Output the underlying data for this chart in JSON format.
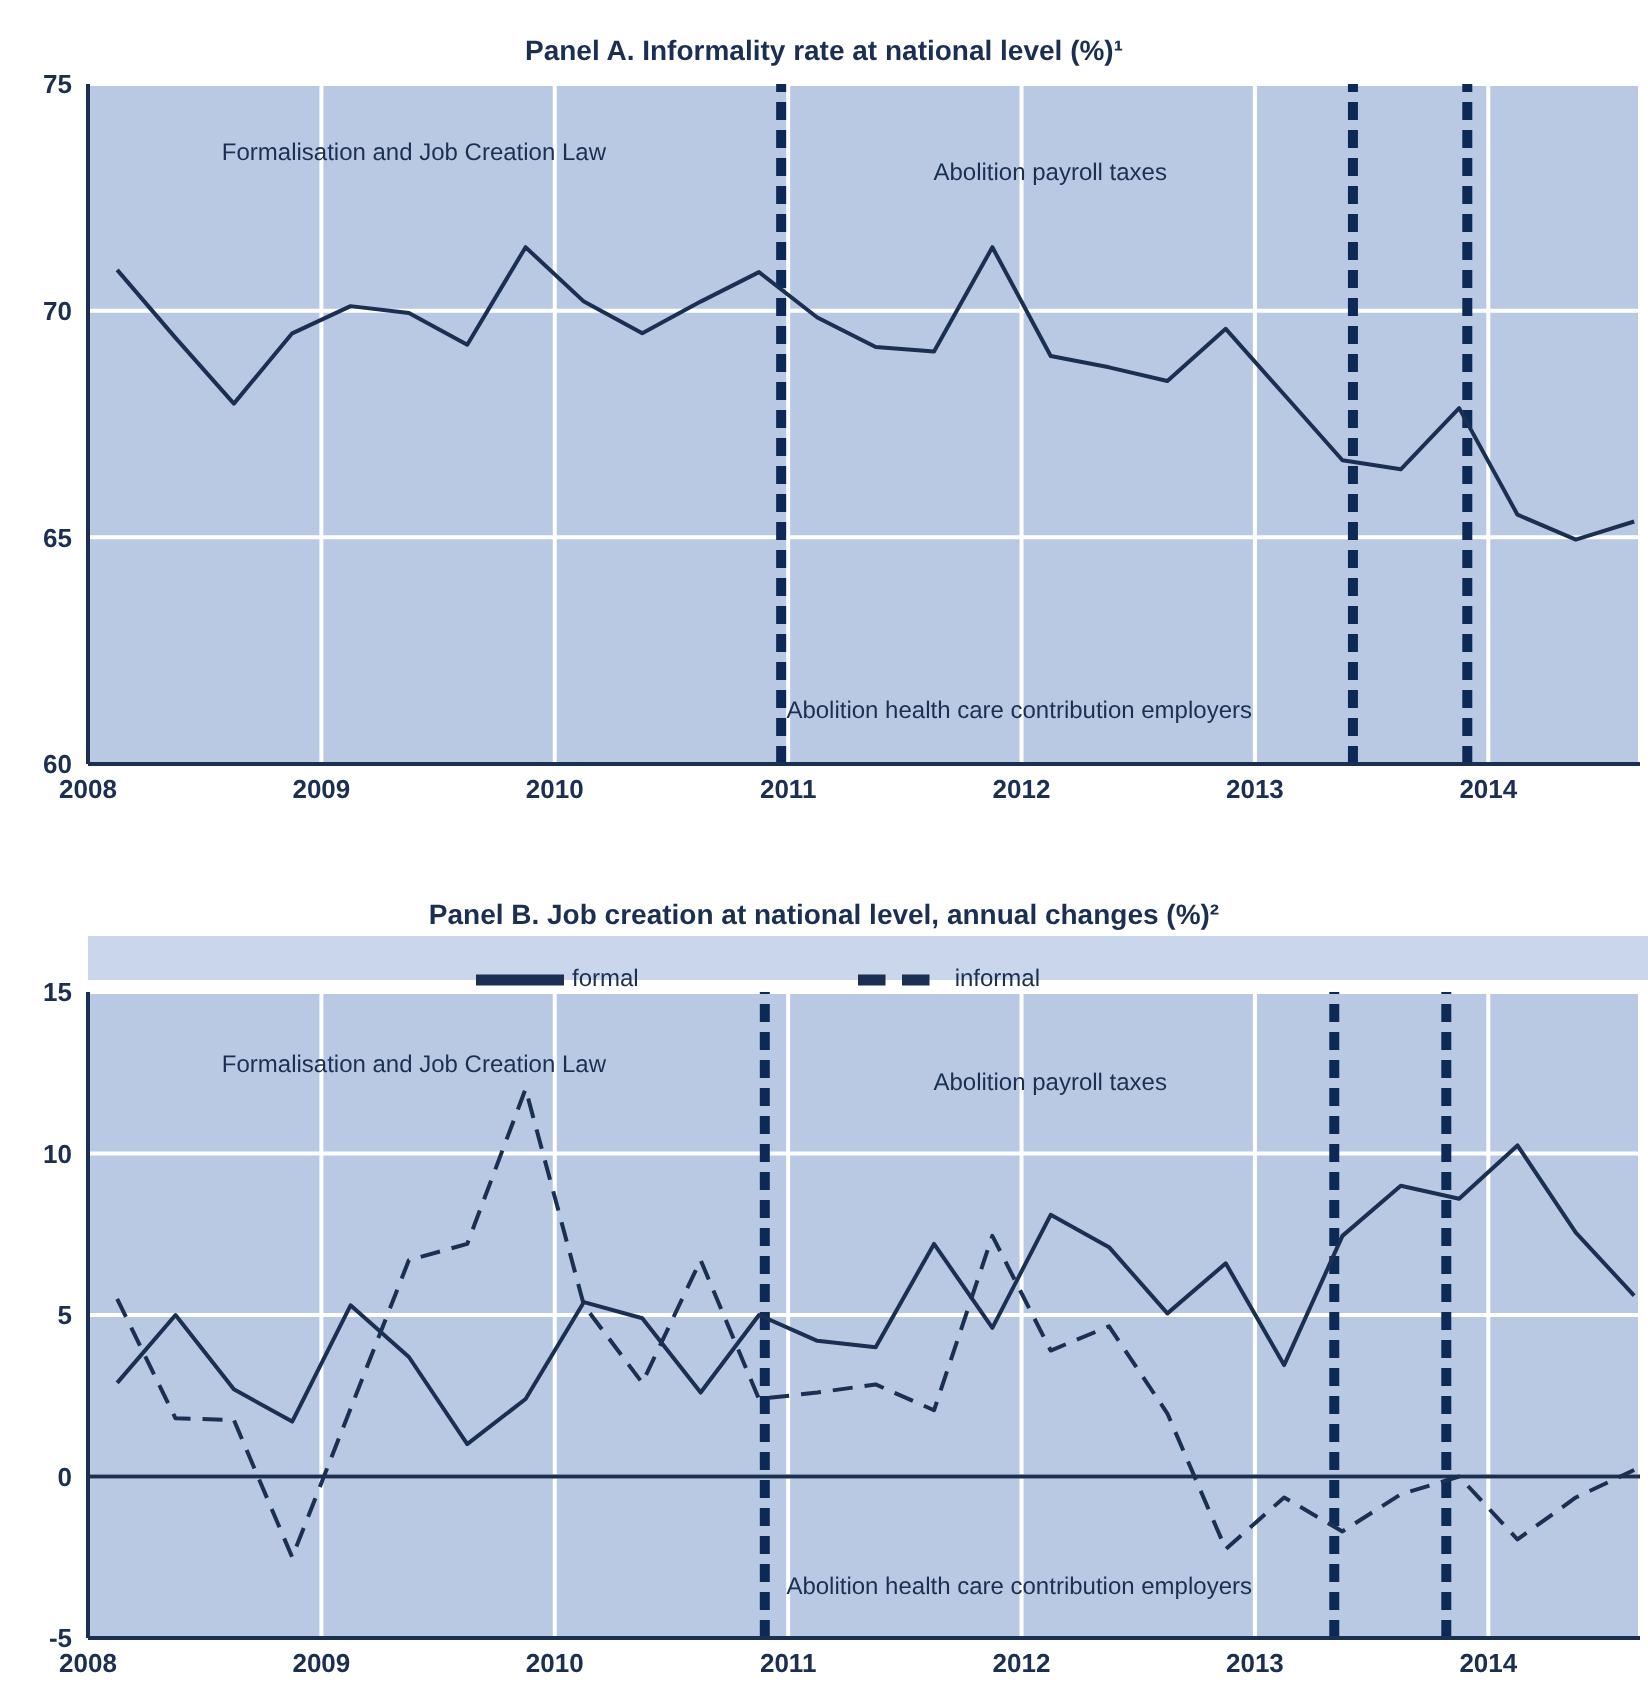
{
  "chart_data": [
    {
      "type": "line",
      "title": "Panel A. Informality rate at national level (%)¹",
      "x": [
        2008.125,
        2008.375,
        2008.625,
        2008.875,
        2009.125,
        2009.375,
        2009.625,
        2009.875,
        2010.125,
        2010.375,
        2010.625,
        2010.875,
        2011.125,
        2011.375,
        2011.625,
        2011.875,
        2012.125,
        2012.375,
        2012.625,
        2012.875,
        2013.125,
        2013.375,
        2013.625,
        2013.875,
        2014.125,
        2014.375,
        2014.625
      ],
      "series": [
        {
          "color": "#1b2f52",
          "line_style": "solid",
          "values": [
            70.9,
            69.4,
            67.95,
            69.5,
            70.1,
            69.95,
            69.25,
            71.4,
            70.2,
            69.5,
            70.2,
            70.85,
            69.85,
            69.2,
            69.1,
            71.4,
            69.0,
            68.75,
            68.45,
            69.6,
            68.15,
            66.7,
            66.5,
            67.85,
            65.5,
            64.95,
            65.35
          ]
        }
      ],
      "xlim": [
        2008,
        2014.65
      ],
      "xticks": [
        2008,
        2009,
        2010,
        2011,
        2012,
        2013,
        2014
      ],
      "ylim": [
        60,
        75
      ],
      "yticks": [
        60,
        65,
        70,
        75
      ],
      "grid": true,
      "legend": false,
      "marker": "none",
      "ref_lines": [
        {
          "axis": "x",
          "value": 2010.97,
          "color": "#0d2a57",
          "line_style": "dashed"
        },
        {
          "axis": "x",
          "value": 2013.42,
          "color": "#0d2a57",
          "line_style": "dashed"
        },
        {
          "axis": "x",
          "value": 2013.91,
          "color": "#0d2a57",
          "line_style": "dashed"
        }
      ],
      "annotations": [
        "Formalisation and Job Creation Law",
        "Abolition payroll taxes",
        "Abolition health care contribution employers"
      ]
    },
    {
      "type": "line",
      "title": "Panel B. Job creation at national level, annual changes (%)²",
      "x": [
        2008.125,
        2008.375,
        2008.625,
        2008.875,
        2009.125,
        2009.375,
        2009.625,
        2009.875,
        2010.125,
        2010.375,
        2010.625,
        2010.875,
        2011.125,
        2011.375,
        2011.625,
        2011.875,
        2012.125,
        2012.375,
        2012.625,
        2012.875,
        2013.125,
        2013.375,
        2013.625,
        2013.875,
        2014.125,
        2014.375,
        2014.625
      ],
      "series": [
        {
          "name": "formal",
          "color": "#1b2f52",
          "line_style": "solid",
          "values": [
            2.9,
            5.0,
            2.7,
            1.7,
            5.3,
            3.7,
            1.0,
            2.4,
            5.4,
            4.9,
            2.6,
            5.0,
            4.2,
            4.0,
            7.2,
            4.6,
            8.1,
            7.1,
            5.05,
            6.6,
            3.45,
            7.45,
            9.0,
            8.6,
            10.25,
            7.55,
            5.6
          ]
        },
        {
          "name": "informal",
          "color": "#1b2f52",
          "line_style": "dashed",
          "values": [
            5.5,
            1.8,
            1.75,
            -2.5,
            2.1,
            6.7,
            7.2,
            12.0,
            5.3,
            2.9,
            6.7,
            2.4,
            2.6,
            2.85,
            2.05,
            7.45,
            3.9,
            4.65,
            1.95,
            -2.25,
            -0.65,
            -1.7,
            -0.55,
            0.0,
            -1.95,
            -0.65,
            0.2
          ]
        }
      ],
      "xlim": [
        2008,
        2014.65
      ],
      "xticks": [
        2008,
        2009,
        2010,
        2011,
        2012,
        2013,
        2014
      ],
      "ylim": [
        -5,
        15
      ],
      "yticks": [
        -5,
        0,
        5,
        10,
        15
      ],
      "grid": true,
      "legend": "top",
      "marker": "none",
      "ref_lines": [
        {
          "axis": "y",
          "value": 0,
          "color": "#1b2f52",
          "line_style": "solid"
        },
        {
          "axis": "x",
          "value": 2010.9,
          "color": "#0d2a57",
          "line_style": "dashed"
        },
        {
          "axis": "x",
          "value": 2013.34,
          "color": "#0d2a57",
          "line_style": "dashed"
        },
        {
          "axis": "x",
          "value": 2013.82,
          "color": "#0d2a57",
          "line_style": "dashed"
        }
      ],
      "annotations": [
        "Formalisation and Job Creation Law",
        "Abolition payroll taxes",
        "Abolition health care contribution employers"
      ]
    }
  ]
}
